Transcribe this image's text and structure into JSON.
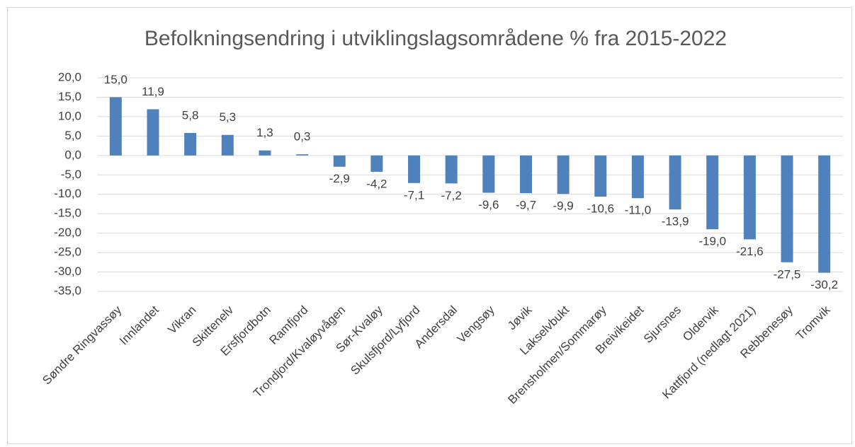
{
  "chart_data": {
    "type": "bar",
    "title": "Befolkningsendring i utviklingslagsområdene % fra 2015-2022",
    "categories": [
      "Søndre Ringvassøy",
      "Innlandet",
      "Vikran",
      "Skittenelv",
      "Ersfjordbotn",
      "Ramfjord",
      "Trondjord/Kvaløyvågen",
      "Sør-Kvaløy",
      "Skulsfjord/Lyfjord",
      "Andersdal",
      "Vengsøy",
      "Jøvik",
      "Lakselvbukt",
      "Brensholmen/Sommarøy",
      "Breivikeidet",
      "Sjursnes",
      "Oldervik",
      "Kattfjord (nedlagt 2021)",
      "Rebbenesøy",
      "Tromvik"
    ],
    "values": [
      15.0,
      11.9,
      5.8,
      5.3,
      1.3,
      0.3,
      -2.9,
      -4.2,
      -7.1,
      -7.2,
      -9.6,
      -9.7,
      -9.9,
      -10.6,
      -11.0,
      -13.9,
      -19.0,
      -21.6,
      -27.5,
      -30.2
    ],
    "value_labels": [
      "15,0",
      "11,9",
      "5,8",
      "5,3",
      "1,3",
      "0,3",
      "-2,9",
      "-4,2",
      "-7,1",
      "-7,2",
      "-9,6",
      "-9,7",
      "-9,9",
      "-10,6",
      "-11,0",
      "-13,9",
      "-19,0",
      "-21,6",
      "-27,5",
      "-30,2"
    ],
    "color": "#4f81bd",
    "ylim": [
      -35,
      20
    ],
    "yticks": [
      {
        "value": 20,
        "label": "20,0"
      },
      {
        "value": 15,
        "label": "15,0"
      },
      {
        "value": 10,
        "label": "10,0"
      },
      {
        "value": 5,
        "label": "5,0"
      },
      {
        "value": 0,
        "label": "0,0"
      },
      {
        "value": -5,
        "label": "-5,0"
      },
      {
        "value": -10,
        "label": "-10,0"
      },
      {
        "value": -15,
        "label": "-15,0"
      },
      {
        "value": -20,
        "label": "-20,0"
      },
      {
        "value": -25,
        "label": "-25,0"
      },
      {
        "value": -30,
        "label": "-30,0"
      },
      {
        "value": -35,
        "label": "-35,0"
      }
    ],
    "grid": true
  }
}
